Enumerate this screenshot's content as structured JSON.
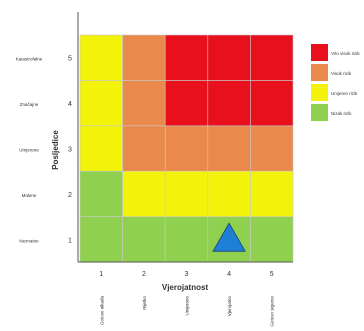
{
  "chart_data": {
    "type": "heatmap",
    "xlabel": "Vjerojatnost",
    "ylabel": "Posljedice",
    "x_ticks": [
      "1",
      "2",
      "3",
      "4",
      "5"
    ],
    "y_ticks": [
      "1",
      "2",
      "3",
      "4",
      "5"
    ],
    "x_category_labels": [
      "Gotovo nikada",
      "Rijetko",
      "Umjereno",
      "Vjerojatno",
      "Gotovo sigurno"
    ],
    "y_category_labels": [
      "Neznatne",
      "Malene",
      "Umjerene",
      "Značajne",
      "Katastrofalne"
    ],
    "cells": [
      [
        "green",
        "green",
        "green",
        "green",
        "green"
      ],
      [
        "green",
        "yellow",
        "yellow",
        "yellow",
        "yellow"
      ],
      [
        "yellow",
        "orange",
        "orange",
        "orange",
        "orange"
      ],
      [
        "yellow",
        "orange",
        "red",
        "red",
        "red"
      ],
      [
        "yellow",
        "orange",
        "red",
        "red",
        "red"
      ]
    ],
    "marker": {
      "shape": "triangle",
      "x": 4,
      "y": 1,
      "color": "#1e7fd6"
    },
    "legend": {
      "placement": "right",
      "items": [
        {
          "label": "Vrlo visok rizik",
          "color": "#e8101c"
        },
        {
          "label": "Visok rizik",
          "color": "#e98a4c"
        },
        {
          "label": "Umjeren rizik",
          "color": "#f2f20a"
        },
        {
          "label": "Nizak rizik",
          "color": "#8fd14f"
        }
      ]
    },
    "colors": {
      "green": "#8fd14f",
      "yellow": "#f2f20a",
      "orange": "#e98a4c",
      "red": "#e8101c"
    }
  }
}
